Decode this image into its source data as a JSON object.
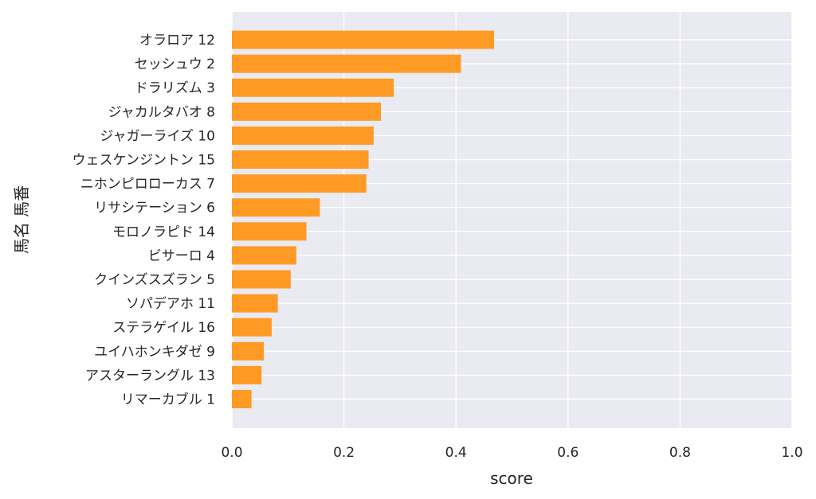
{
  "chart_data": {
    "type": "bar",
    "orientation": "horizontal",
    "xlabel": "score",
    "ylabel": "馬名 馬番",
    "xlim": [
      0,
      1.0
    ],
    "xticks": [
      "0.0",
      "0.2",
      "0.4",
      "0.6",
      "0.8",
      "1.0"
    ],
    "grid": true,
    "bar_color": "#ff9a24",
    "background_color": "#eaeaf2",
    "categories": [
      "オラロア 12",
      "セッシュウ 2",
      "ドラリズム 3",
      "ジャカルタバオ 8",
      "ジャガーライズ 10",
      "ウェスケンジントン 15",
      "ニホンピロローカス 7",
      "リサシテーション 6",
      "モロノラピド 14",
      "ビサーロ 4",
      "クインズスズラン 5",
      "ソパデアホ 11",
      "ステラゲイル 16",
      "ユイハホンキダゼ 9",
      "アスターラングル 13",
      "リマーカブル 1"
    ],
    "values": [
      0.468,
      0.409,
      0.289,
      0.266,
      0.253,
      0.244,
      0.24,
      0.157,
      0.133,
      0.115,
      0.105,
      0.082,
      0.071,
      0.057,
      0.053,
      0.035
    ]
  }
}
